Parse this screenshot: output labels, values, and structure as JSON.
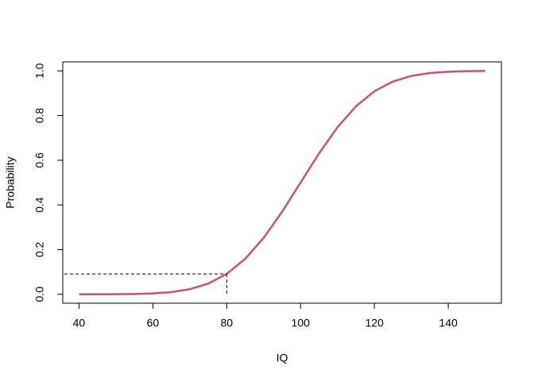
{
  "chart_data": {
    "type": "line",
    "xlabel": "IQ",
    "ylabel": "Probability",
    "x": [
      40,
      45,
      50,
      55,
      60,
      65,
      70,
      75,
      80,
      85,
      90,
      95,
      100,
      105,
      110,
      115,
      120,
      125,
      130,
      135,
      140,
      145,
      150
    ],
    "series": [
      {
        "color": "#c9526c",
        "values": [
          3e-05,
          0.00012,
          0.00043,
          0.00135,
          0.0038,
          0.0098,
          0.0228,
          0.0478,
          0.0912,
          0.1587,
          0.2525,
          0.3694,
          0.5,
          0.6306,
          0.7475,
          0.8413,
          0.9088,
          0.9522,
          0.9772,
          0.9902,
          0.9962,
          0.9987,
          0.9996
        ]
      }
    ],
    "reference": {
      "x": 80,
      "y": 0.0912
    },
    "xlim": [
      35.6,
      154.4
    ],
    "ylim": [
      -0.04,
      1.04
    ],
    "xticks": [
      40,
      60,
      80,
      100,
      120,
      140
    ],
    "yticks": [
      {
        "value": 0,
        "label": "0.0"
      },
      {
        "value": 0.2,
        "label": "0.2"
      },
      {
        "value": 0.4,
        "label": "0.4"
      },
      {
        "value": 0.6,
        "label": "0.6"
      },
      {
        "value": 0.8,
        "label": "0.8"
      },
      {
        "value": 1,
        "label": "1.0"
      }
    ],
    "grid": false
  }
}
